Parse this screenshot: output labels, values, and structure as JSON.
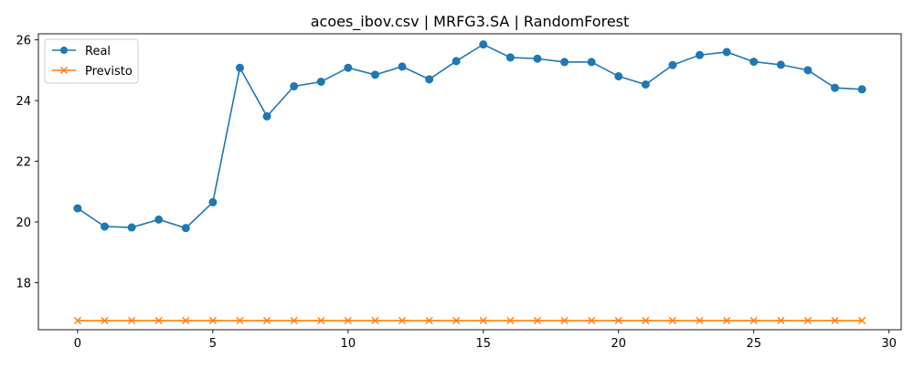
{
  "chart_data": {
    "type": "line",
    "title": "acoes_ibov.csv | MRFG3.SA | RandomForest",
    "xlabel": "",
    "ylabel": "",
    "xlim": [
      -1.45,
      30.45
    ],
    "ylim": [
      16.45,
      26.2
    ],
    "x_ticks": [
      0,
      5,
      10,
      15,
      20,
      25,
      30
    ],
    "y_ticks": [
      18,
      20,
      22,
      24,
      26
    ],
    "grid": false,
    "legend_position": "top-left",
    "x": [
      0,
      1,
      2,
      3,
      4,
      5,
      6,
      7,
      8,
      9,
      10,
      11,
      12,
      13,
      14,
      15,
      16,
      17,
      18,
      19,
      20,
      21,
      22,
      23,
      24,
      25,
      26,
      27,
      28,
      29
    ],
    "series": [
      {
        "name": "Real",
        "color": "#1f77b4",
        "marker": "circle",
        "values": [
          20.45,
          19.85,
          19.82,
          20.08,
          19.8,
          20.65,
          25.08,
          23.48,
          24.47,
          24.62,
          25.08,
          24.85,
          25.12,
          24.7,
          25.3,
          25.85,
          25.42,
          25.38,
          25.27,
          25.27,
          24.8,
          24.53,
          25.17,
          25.5,
          25.6,
          25.28,
          25.18,
          25.0,
          24.42,
          24.37
        ]
      },
      {
        "name": "Previsto",
        "color": "#ff7f0e",
        "marker": "x",
        "values": [
          16.75,
          16.75,
          16.75,
          16.75,
          16.75,
          16.75,
          16.75,
          16.75,
          16.75,
          16.75,
          16.75,
          16.75,
          16.75,
          16.75,
          16.75,
          16.75,
          16.75,
          16.75,
          16.75,
          16.75,
          16.75,
          16.75,
          16.75,
          16.75,
          16.75,
          16.75,
          16.75,
          16.75,
          16.75,
          16.75
        ]
      }
    ]
  }
}
